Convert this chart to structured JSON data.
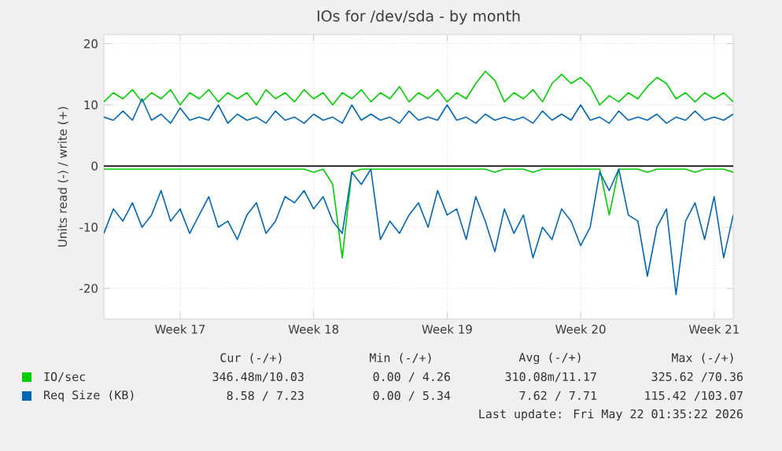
{
  "chart_data": {
    "type": "line",
    "title": "IOs for /dev/sda - by month",
    "ylabel": "Units read (-) / write (+)",
    "categories": [
      null,
      null,
      null,
      null,
      null,
      null,
      null,
      null,
      "Week 17",
      null,
      null,
      null,
      null,
      null,
      null,
      null,
      null,
      null,
      null,
      null,
      null,
      null,
      "Week 18",
      null,
      null,
      null,
      null,
      null,
      null,
      null,
      null,
      null,
      null,
      null,
      null,
      null,
      "Week 19",
      null,
      null,
      null,
      null,
      null,
      null,
      null,
      null,
      null,
      null,
      null,
      null,
      null,
      "Week 20",
      null,
      null,
      null,
      null,
      null,
      null,
      null,
      null,
      null,
      null,
      null,
      null,
      null,
      "Week 21",
      null,
      null
    ],
    "ylim": [
      -25,
      21.5
    ],
    "yticks": [
      -20,
      -10,
      0,
      10,
      20
    ],
    "grid": true,
    "legend": "bottom",
    "ref_lines": [
      {
        "axis": "y",
        "value": 0,
        "color": "#000000"
      }
    ],
    "series": [
      {
        "name": "IO/sec",
        "color": "#00cc00",
        "values": [
          10.5,
          12,
          11,
          12.5,
          10.5,
          12,
          11,
          12.5,
          10,
          12,
          11,
          12.5,
          10.5,
          12,
          11,
          12,
          10,
          12.5,
          11,
          12,
          10.5,
          12.5,
          11,
          12,
          10,
          12,
          11,
          12.5,
          10.5,
          12,
          11,
          13,
          10.5,
          12,
          11,
          12.5,
          10.5,
          12,
          11,
          13.5,
          15.5,
          14,
          10.5,
          12,
          11,
          12.5,
          10.5,
          13.5,
          15,
          13.5,
          14.5,
          13,
          10,
          11.5,
          10.5,
          12,
          11,
          13,
          14.5,
          13.5,
          11,
          12,
          10.5,
          12,
          11,
          12,
          10.5
        ]
      },
      {
        "color": "#00cc00",
        "values": [
          -0.5,
          -0.5,
          -0.5,
          -0.5,
          -0.5,
          -0.5,
          -0.5,
          -0.5,
          -0.5,
          -0.5,
          -0.5,
          -0.5,
          -0.5,
          -0.5,
          -0.5,
          -0.5,
          -0.5,
          -0.5,
          -0.5,
          -0.5,
          -0.5,
          -0.5,
          -1,
          -0.5,
          -3,
          -15,
          -1,
          -0.5,
          -0.5,
          -0.5,
          -0.5,
          -0.5,
          -0.5,
          -0.5,
          -0.5,
          -0.5,
          -0.5,
          -0.5,
          -0.5,
          -0.5,
          -0.5,
          -1,
          -0.5,
          -0.5,
          -0.5,
          -1,
          -0.5,
          -0.5,
          -0.5,
          -0.5,
          -0.5,
          -0.5,
          -0.5,
          -8,
          -0.5,
          -0.5,
          -0.5,
          -1,
          -0.5,
          -0.5,
          -0.5,
          -0.5,
          -1,
          -0.5,
          -0.5,
          -0.5,
          -1
        ]
      },
      {
        "name": "Req Size (KB)",
        "color": "#0066b3",
        "values": [
          8,
          7.5,
          9,
          7.5,
          11,
          7.5,
          8.5,
          7,
          9.5,
          7.5,
          8,
          7.5,
          10,
          7,
          8.5,
          7.5,
          8,
          7,
          9,
          7.5,
          8,
          7,
          8.5,
          7.5,
          8,
          7,
          10,
          7.5,
          8.5,
          7.5,
          8,
          7,
          9,
          7.5,
          8,
          7.5,
          10,
          7.5,
          8,
          7,
          8.5,
          7.5,
          8,
          7.5,
          8,
          7,
          9,
          7.5,
          8.5,
          7.5,
          10,
          7.5,
          8,
          7,
          9,
          7.5,
          8,
          7.5,
          8.5,
          7,
          8,
          7.5,
          9,
          7.5,
          8,
          7.5,
          8.5
        ]
      },
      {
        "color": "#0066b3",
        "values": [
          -11,
          -7,
          -9,
          -6,
          -10,
          -8,
          -4,
          -9,
          -7,
          -11,
          -8,
          -5,
          -10,
          -9,
          -12,
          -8,
          -6,
          -11,
          -9,
          -5,
          -6,
          -4,
          -7,
          -5,
          -9,
          -11,
          -1,
          -3,
          -0.5,
          -12,
          -9,
          -11,
          -8,
          -6,
          -10,
          -4,
          -8,
          -7,
          -12,
          -5,
          -9,
          -14,
          -7,
          -11,
          -8,
          -15,
          -10,
          -12,
          -7,
          -9,
          -13,
          -10,
          -1,
          -4,
          -0.5,
          -8,
          -9,
          -18,
          -10,
          -7,
          -21,
          -9,
          -6,
          -12,
          -5,
          -15,
          -8
        ]
      }
    ],
    "annotations": [
      "Cur (-/+)",
      "Min (-/+)",
      "Avg (-/+)",
      "Max (-/+)",
      "346.48m/10.03",
      "0.00 / 4.26",
      "310.08m/11.17",
      "325.62 /70.36",
      "8.58 / 7.23",
      "0.00 / 5.34",
      "7.62 / 7.71",
      "115.42 /103.07",
      "Last update: Fri May 22 01:35:22 2026"
    ]
  }
}
